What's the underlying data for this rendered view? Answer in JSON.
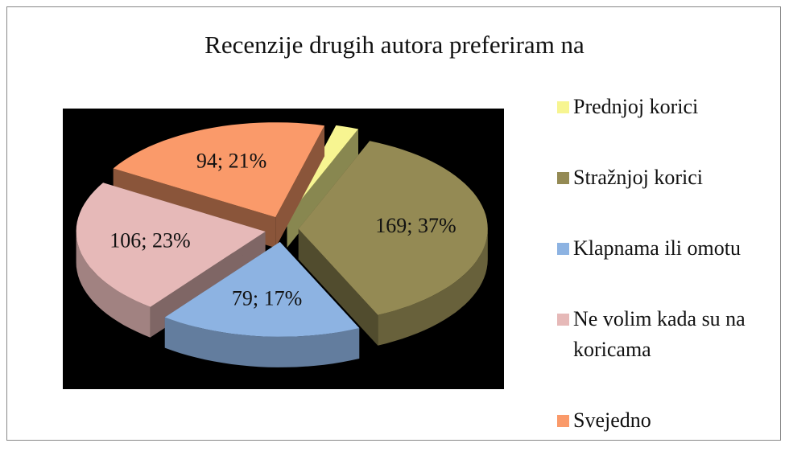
{
  "chart_data": {
    "type": "pie3d",
    "title": "Recenzije drugih autora preferiram na",
    "categories": [
      "Prednjoj korici",
      "Stražnjoj korici",
      "Klapnama ili omotu",
      "Ne volim kada su na koricama",
      "Svejedno"
    ],
    "values": [
      9,
      169,
      79,
      106,
      94
    ],
    "value_labels": [
      null,
      "169; 37%",
      "79; 17%",
      "106; 23%",
      "94; 21%"
    ],
    "colors": [
      "#f7f591",
      "#948a54",
      "#8db3e2",
      "#e6b9b8",
      "#fa9a6a"
    ],
    "plot_background": "#000000",
    "legend": "right"
  }
}
